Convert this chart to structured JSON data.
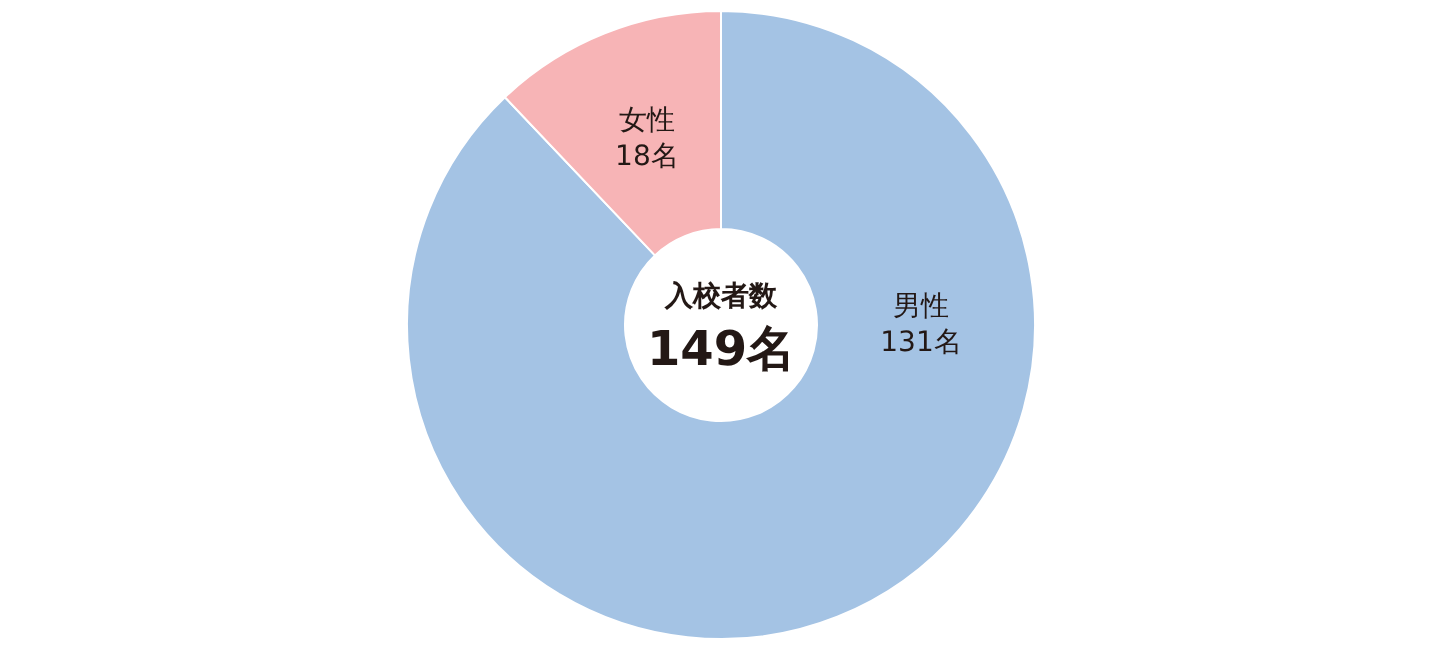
{
  "chart_data": {
    "type": "donut",
    "title": "入校者数",
    "annotations": [
      "149名"
    ],
    "categories": [
      "男性",
      "女性"
    ],
    "values": [
      131,
      18
    ],
    "colors": [
      "#a4c3e4",
      "#f7b4b6"
    ],
    "value_labels": [
      "131名",
      "18名"
    ],
    "legend": false
  }
}
